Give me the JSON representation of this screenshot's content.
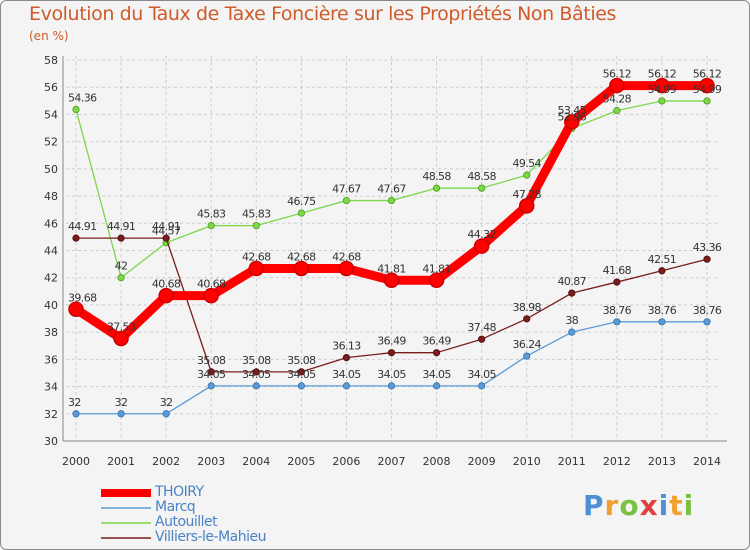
{
  "title": "Evolution du Taux de Taxe Foncière sur les Propriétés Non Bâties",
  "unit": "(en %)",
  "logo": {
    "letters": [
      "P",
      "r",
      "o",
      "x",
      "i",
      "t",
      "i"
    ],
    "colors": [
      "#4d90d6",
      "#f0a030",
      "#7ac043",
      "#e04040",
      "#4d90d6",
      "#f0a030",
      "#7ac043"
    ]
  },
  "chart_data": {
    "type": "line",
    "title": "Evolution du Taux de Taxe Foncière sur les Propriétés Non Bâties",
    "ylabel": "(en %)",
    "xlabel": "",
    "ylim": [
      30,
      58
    ],
    "yticks": [
      30,
      32,
      34,
      36,
      38,
      40,
      42,
      44,
      46,
      48,
      50,
      52,
      54,
      56,
      58
    ],
    "categories": [
      "2000",
      "2001",
      "2002",
      "2003",
      "2004",
      "2005",
      "2006",
      "2007",
      "2008",
      "2009",
      "2010",
      "2011",
      "2012",
      "2013",
      "2014"
    ],
    "grid": true,
    "legend_position": "bottom-left",
    "series": [
      {
        "name": "THOIRY",
        "color": "#ff0000",
        "values": [
          39.68,
          37.53,
          40.68,
          40.68,
          42.68,
          42.68,
          42.68,
          41.81,
          41.81,
          44.32,
          47.28,
          53.45,
          56.12,
          56.12,
          56.12
        ],
        "labels": [
          "39.68",
          "37.53",
          "40.68",
          "40.68",
          "42.68",
          "42.68",
          "42.68",
          "41.81",
          "41.81",
          "44.32",
          "47.28",
          "53.45",
          "56.12",
          "56.12",
          "56.12"
        ]
      },
      {
        "name": "Marcq",
        "color": "#5b9bd5",
        "values": [
          32,
          32,
          32,
          34.05,
          34.05,
          34.05,
          34.05,
          34.05,
          34.05,
          34.05,
          36.24,
          38,
          38.76,
          38.76,
          38.76
        ],
        "labels": [
          "32",
          "32",
          "32",
          "34.05",
          "34.05",
          "34.05",
          "34.05",
          "34.05",
          "34.05",
          "34.05",
          "36.24",
          "38",
          "38.76",
          "38.76",
          "38.76"
        ]
      },
      {
        "name": "Autouillet",
        "color": "#7bd84a",
        "values": [
          54.36,
          42,
          44.57,
          45.83,
          45.83,
          46.75,
          47.67,
          47.67,
          48.58,
          48.58,
          49.54,
          52.96,
          54.28,
          54.99,
          54.99
        ],
        "labels": [
          "54.36",
          "42",
          "44.57",
          "45.83",
          "45.83",
          "46.75",
          "47.67",
          "47.67",
          "48.58",
          "48.58",
          "49.54",
          "52.96",
          "54.28",
          "54.99",
          "54.99"
        ]
      },
      {
        "name": "Villiers-le-Mahieu",
        "color": "#7a1c1c",
        "values": [
          44.91,
          44.91,
          44.91,
          35.08,
          35.08,
          35.08,
          36.13,
          36.49,
          36.49,
          37.48,
          38.98,
          40.87,
          41.68,
          42.51,
          43.36
        ],
        "labels": [
          "44.91",
          "44.91",
          "44.91",
          "35.08",
          "35.08",
          "35.08",
          "36.13",
          "36.49",
          "36.49",
          "37.48",
          "38.98",
          "40.87",
          "41.68",
          "42.51",
          "43.36"
        ]
      }
    ]
  }
}
